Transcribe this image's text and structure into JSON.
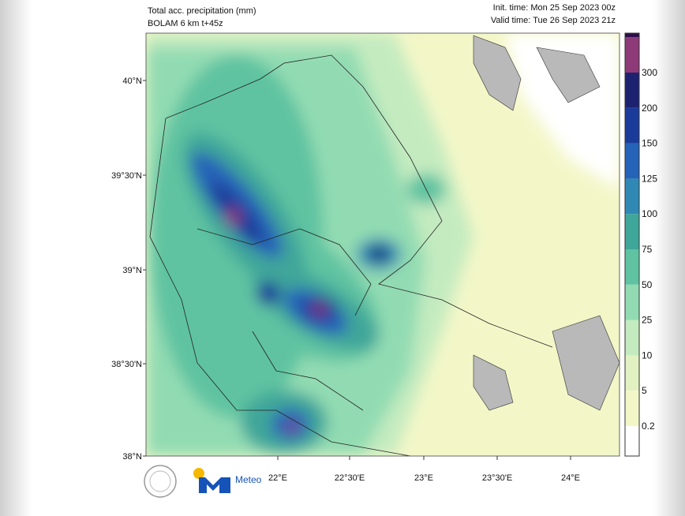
{
  "header": {
    "title": "Total acc. precipitation (mm)",
    "subtitle": "BOLAM 6 km t+45z",
    "init_time": "Init. time: Mon 25 Sep 2023 00z",
    "valid_time": "Valid time: Tue 26 Sep 2023 21z"
  },
  "map": {
    "lat_labels": [
      "40°N",
      "39°30'N",
      "39°N",
      "38°30'N",
      "38°N"
    ],
    "lon_labels": [
      "22°E",
      "22°30'E",
      "23°E",
      "23°30'E",
      "24°E"
    ]
  },
  "colorbar": {
    "labels": [
      "0.2",
      "5",
      "10",
      "25",
      "50",
      "75",
      "100",
      "125",
      "150",
      "200",
      "300"
    ],
    "colors": [
      "#ffffff",
      "#f3f7c8",
      "#e2f1c1",
      "#c4ebc0",
      "#92dbb2",
      "#5fc3a1",
      "#3fa69a",
      "#2f89b4",
      "#2563b8",
      "#1b3b9a",
      "#1d2270",
      "#8e3a78",
      "#2e0d4a"
    ]
  },
  "logo": {
    "text": "Meteo"
  }
}
